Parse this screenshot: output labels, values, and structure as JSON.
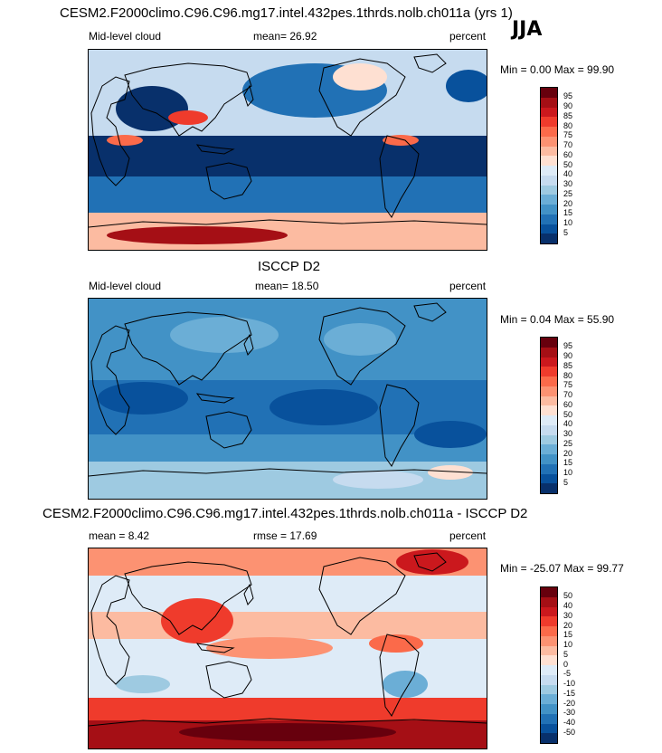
{
  "season": "JJA",
  "panels": [
    {
      "title": "CESM2.F2000climo.C96.C96.mg17.intel.432pes.1thrds.nolb.ch011a (yrs 1)",
      "left_label": "Mid-level cloud",
      "center_label": "mean=  26.92",
      "right_label": "percent",
      "minmax": "Min =   0.00 Max =  99.90",
      "colorbar_labels": [
        "95",
        "90",
        "85",
        "80",
        "75",
        "70",
        "60",
        "50",
        "40",
        "30",
        "25",
        "20",
        "15",
        "10",
        "5"
      ]
    },
    {
      "title": "ISCCP D2",
      "left_label": "Mid-level cloud",
      "center_label": "mean=  18.50",
      "right_label": "percent",
      "minmax": "Min =  0.04 Max =  55.90",
      "colorbar_labels": [
        "95",
        "90",
        "85",
        "80",
        "75",
        "70",
        "60",
        "50",
        "40",
        "30",
        "25",
        "20",
        "15",
        "10",
        "5"
      ]
    },
    {
      "title": "CESM2.F2000climo.C96.C96.mg17.intel.432pes.1thrds.nolb.ch011a - ISCCP D2",
      "left_label": "mean =   8.42",
      "center_label": "rmse =  17.69",
      "right_label": "percent",
      "minmax": "Min = -25.07 Max =  99.77",
      "colorbar_labels": [
        "50",
        "40",
        "30",
        "20",
        "15",
        "10",
        "5",
        "0",
        "-5",
        "-10",
        "-15",
        "-20",
        "-30",
        "-40",
        "-50"
      ]
    }
  ],
  "colors": {
    "abs_scale": [
      "#67000d",
      "#a50f15",
      "#cb181d",
      "#ef3b2c",
      "#fb6a4a",
      "#fc9272",
      "#fcbba1",
      "#fee0d2",
      "#deebf7",
      "#c6dbef",
      "#9ecae1",
      "#6baed6",
      "#4292c6",
      "#2171b5",
      "#08519c",
      "#08306b"
    ],
    "diff_scale": [
      "#67000d",
      "#a50f15",
      "#cb181d",
      "#ef3b2c",
      "#fb6a4a",
      "#fc9272",
      "#fcbba1",
      "#fee0d2",
      "#deebf7",
      "#c6dbef",
      "#9ecae1",
      "#6baed6",
      "#4292c6",
      "#2171b5",
      "#08519c",
      "#08306b"
    ]
  }
}
